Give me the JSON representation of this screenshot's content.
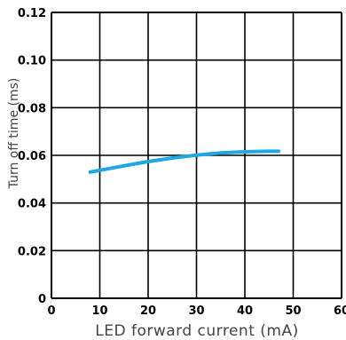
{
  "chart_data": {
    "type": "line",
    "title": "",
    "xlabel": "LED forward current (mA)",
    "ylabel": "Turn off time (ms)",
    "xlim": [
      0,
      60
    ],
    "ylim": [
      0,
      0.12
    ],
    "x_ticks": [
      "0",
      "10",
      "20",
      "30",
      "40",
      "50",
      "60"
    ],
    "y_ticks": [
      "0",
      "0.02",
      "0.04",
      "0.06",
      "0.08",
      "0.10",
      "0.12"
    ],
    "grid": true,
    "series": [
      {
        "color": "#1ea7e4",
        "points": [
          [
            8,
            0.053
          ],
          [
            10,
            0.0537
          ],
          [
            12,
            0.0545
          ],
          [
            15,
            0.0556
          ],
          [
            18,
            0.0567
          ],
          [
            20,
            0.0574
          ],
          [
            25,
            0.0589
          ],
          [
            30,
            0.0601
          ],
          [
            35,
            0.061
          ],
          [
            40,
            0.0615
          ],
          [
            45,
            0.0617
          ],
          [
            47,
            0.0617
          ]
        ]
      }
    ]
  }
}
